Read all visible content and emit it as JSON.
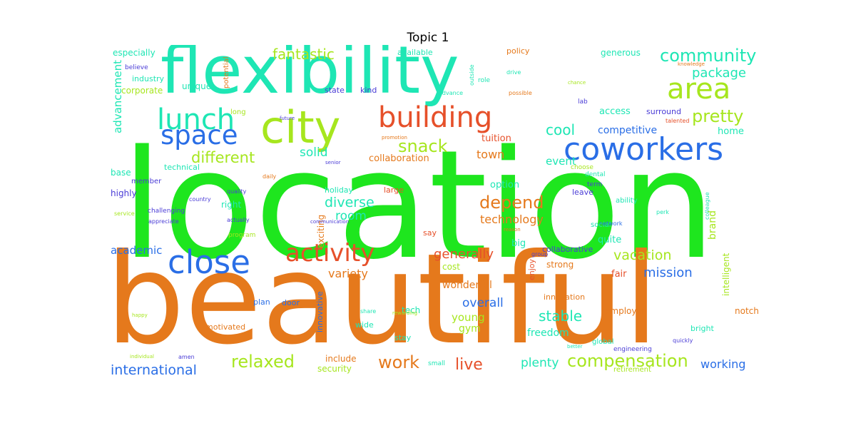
{
  "title": "Topic 1",
  "colors": {
    "green": "#1ee61e",
    "orange": "#e5791c",
    "teal": "#1ee6b4",
    "blue": "#2a6ee6",
    "lime": "#a6e61e",
    "red": "#e6502a",
    "purple": "#4a3cd6"
  },
  "words": [
    {
      "id": "location",
      "text": "location",
      "color": "green"
    },
    {
      "id": "beautiful",
      "text": "beautiful",
      "color": "orange"
    },
    {
      "id": "flexibility",
      "text": "flexibility",
      "color": "teal"
    },
    {
      "id": "city",
      "text": "city",
      "color": "lime"
    },
    {
      "id": "coworkers",
      "text": "coworkers",
      "color": "blue"
    },
    {
      "id": "building",
      "text": "building",
      "color": "red"
    },
    {
      "id": "area",
      "text": "area",
      "color": "lime"
    },
    {
      "id": "lunch",
      "text": "lunch",
      "color": "teal"
    },
    {
      "id": "space",
      "text": "space",
      "color": "blue"
    },
    {
      "id": "close",
      "text": "close",
      "color": "blue"
    },
    {
      "id": "activity",
      "text": "activity",
      "color": "red"
    },
    {
      "id": "community",
      "text": "community",
      "color": "teal"
    },
    {
      "id": "fantastic",
      "text": "fantastic",
      "color": "lime"
    },
    {
      "id": "pretty",
      "text": "pretty",
      "color": "lime"
    },
    {
      "id": "package",
      "text": "package",
      "color": "teal"
    },
    {
      "id": "different",
      "text": "different",
      "color": "lime"
    },
    {
      "id": "snack",
      "text": "snack",
      "color": "lime"
    },
    {
      "id": "cool",
      "text": "cool",
      "color": "teal"
    },
    {
      "id": "depend",
      "text": "depend",
      "color": "orange"
    },
    {
      "id": "diverse",
      "text": "diverse",
      "color": "teal"
    },
    {
      "id": "room",
      "text": "room",
      "color": "teal"
    },
    {
      "id": "technology",
      "text": "technology",
      "color": "orange"
    },
    {
      "id": "generally",
      "text": "generally",
      "color": "red"
    },
    {
      "id": "vacation",
      "text": "vacation",
      "color": "lime"
    },
    {
      "id": "mission",
      "text": "mission",
      "color": "blue"
    },
    {
      "id": "compensation",
      "text": "compensation",
      "color": "lime"
    },
    {
      "id": "relaxed",
      "text": "relaxed",
      "color": "lime"
    },
    {
      "id": "work",
      "text": "work",
      "color": "orange"
    },
    {
      "id": "live",
      "text": "live",
      "color": "red"
    },
    {
      "id": "international",
      "text": "international",
      "color": "blue"
    },
    {
      "id": "stable",
      "text": "stable",
      "color": "teal"
    },
    {
      "id": "solid",
      "text": "solid",
      "color": "teal"
    },
    {
      "id": "event",
      "text": "event",
      "color": "teal"
    },
    {
      "id": "town",
      "text": "town",
      "color": "orange"
    },
    {
      "id": "competitive",
      "text": "competitive",
      "color": "blue"
    },
    {
      "id": "advancement",
      "text": "advancement",
      "color": "teal"
    },
    {
      "id": "collaboration",
      "text": "collaboration",
      "color": "orange"
    },
    {
      "id": "tuition",
      "text": "tuition",
      "color": "red"
    },
    {
      "id": "variety",
      "text": "variety",
      "color": "orange"
    },
    {
      "id": "academic",
      "text": "academic",
      "color": "blue"
    },
    {
      "id": "wonderful",
      "text": "wonderful",
      "color": "orange"
    },
    {
      "id": "overall",
      "text": "overall",
      "color": "blue"
    },
    {
      "id": "young",
      "text": "young",
      "color": "lime"
    },
    {
      "id": "gym",
      "text": "gym",
      "color": "lime"
    },
    {
      "id": "plenty",
      "text": "plenty",
      "color": "teal"
    },
    {
      "id": "working",
      "text": "working",
      "color": "blue"
    },
    {
      "id": "freedom",
      "text": "freedom",
      "color": "teal"
    },
    {
      "id": "brand",
      "text": "brand",
      "color": "lime"
    },
    {
      "id": "option",
      "text": "option",
      "color": "teal"
    },
    {
      "id": "home",
      "text": "home",
      "color": "teal"
    },
    {
      "id": "generous",
      "text": "generous",
      "color": "teal"
    },
    {
      "id": "especially",
      "text": "especially",
      "color": "teal"
    },
    {
      "id": "available",
      "text": "available",
      "color": "teal"
    },
    {
      "id": "policy",
      "text": "policy",
      "color": "orange"
    },
    {
      "id": "unique",
      "text": "unique",
      "color": "teal"
    },
    {
      "id": "industry",
      "text": "industry",
      "color": "teal"
    },
    {
      "id": "corporate",
      "text": "corporate",
      "color": "lime"
    },
    {
      "id": "base",
      "text": "base",
      "color": "teal"
    },
    {
      "id": "highly",
      "text": "highly",
      "color": "purple"
    },
    {
      "id": "exciting",
      "text": "exciting",
      "color": "orange"
    },
    {
      "id": "include",
      "text": "include",
      "color": "orange"
    },
    {
      "id": "security",
      "text": "security",
      "color": "lime"
    },
    {
      "id": "enjoy",
      "text": "enjoy",
      "color": "red"
    },
    {
      "id": "intelligent",
      "text": "intelligent",
      "color": "lime"
    },
    {
      "id": "innovation",
      "text": "innovation",
      "color": "orange"
    },
    {
      "id": "collaborative",
      "text": "collaborative",
      "color": "purple"
    },
    {
      "id": "access",
      "text": "access",
      "color": "teal"
    },
    {
      "id": "surround",
      "text": "surround",
      "color": "purple"
    },
    {
      "id": "employer",
      "text": "employer",
      "color": "orange"
    },
    {
      "id": "fair",
      "text": "fair",
      "color": "red"
    },
    {
      "id": "strong",
      "text": "strong",
      "color": "orange"
    },
    {
      "id": "notch",
      "text": "notch",
      "color": "orange"
    },
    {
      "id": "bright",
      "text": "bright",
      "color": "teal"
    },
    {
      "id": "motivated",
      "text": "motivated",
      "color": "orange"
    },
    {
      "id": "innovative",
      "text": "innovative",
      "color": "blue"
    },
    {
      "id": "tech",
      "text": "tech",
      "color": "teal"
    },
    {
      "id": "quite",
      "text": "quite",
      "color": "teal"
    },
    {
      "id": "leave",
      "text": "leave",
      "color": "purple"
    },
    {
      "id": "large",
      "text": "large",
      "color": "red"
    },
    {
      "id": "holiday",
      "text": "holiday",
      "color": "teal"
    },
    {
      "id": "right",
      "text": "right",
      "color": "teal"
    },
    {
      "id": "member",
      "text": "member",
      "color": "purple"
    },
    {
      "id": "technical",
      "text": "technical",
      "color": "teal"
    },
    {
      "id": "potential",
      "text": "potential",
      "color": "orange"
    },
    {
      "id": "state",
      "text": "state",
      "color": "purple"
    },
    {
      "id": "kind",
      "text": "kind",
      "color": "purple"
    },
    {
      "id": "long",
      "text": "long",
      "color": "lime"
    },
    {
      "id": "believe",
      "text": "believe",
      "color": "purple"
    },
    {
      "id": "door",
      "text": "door",
      "color": "blue"
    },
    {
      "id": "plan",
      "text": "plan",
      "color": "blue"
    },
    {
      "id": "wide",
      "text": "wide",
      "color": "teal"
    },
    {
      "id": "stay",
      "text": "stay",
      "color": "teal"
    },
    {
      "id": "cost",
      "text": "cost",
      "color": "lime"
    },
    {
      "id": "big",
      "text": "big",
      "color": "teal"
    },
    {
      "id": "social",
      "text": "social",
      "color": "teal"
    },
    {
      "id": "choose",
      "text": "choose",
      "color": "lime"
    },
    {
      "id": "dental",
      "text": "dental",
      "color": "teal"
    },
    {
      "id": "ability",
      "text": "ability",
      "color": "teal"
    },
    {
      "id": "global",
      "text": "global",
      "color": "teal"
    },
    {
      "id": "retirement",
      "text": "retirement",
      "color": "lime"
    },
    {
      "id": "engineering",
      "text": "engineering",
      "color": "purple"
    },
    {
      "id": "quickly",
      "text": "quickly",
      "color": "purple"
    },
    {
      "id": "say",
      "text": "say",
      "color": "red"
    },
    {
      "id": "small",
      "text": "small",
      "color": "teal"
    },
    {
      "id": "drive",
      "text": "drive",
      "color": "teal"
    },
    {
      "id": "role",
      "text": "role",
      "color": "teal"
    },
    {
      "id": "advance",
      "text": "advance",
      "color": "teal"
    },
    {
      "id": "possible",
      "text": "possible",
      "color": "orange"
    },
    {
      "id": "outside",
      "text": "outside",
      "color": "teal"
    },
    {
      "id": "challenging",
      "text": "challenging",
      "color": "purple"
    },
    {
      "id": "appreciate",
      "text": "appreciate",
      "color": "purple"
    },
    {
      "id": "program",
      "text": "program",
      "color": "lime"
    },
    {
      "id": "share",
      "text": "share",
      "color": "teal"
    },
    {
      "id": "rewarding",
      "text": "rewarding",
      "color": "lime"
    },
    {
      "id": "talented",
      "text": "talented",
      "color": "red"
    },
    {
      "id": "colleague",
      "text": "colleague",
      "color": "teal"
    },
    {
      "id": "individual",
      "text": "individual",
      "color": "lime"
    },
    {
      "id": "amen",
      "text": "amen",
      "color": "purple"
    },
    {
      "id": "better",
      "text": "better",
      "color": "teal"
    },
    {
      "id": "group",
      "text": "group",
      "color": "purple"
    },
    {
      "id": "quality",
      "text": "quality",
      "color": "purple"
    },
    {
      "id": "country",
      "text": "country",
      "color": "purple"
    },
    {
      "id": "service",
      "text": "service",
      "color": "lime"
    },
    {
      "id": "actually",
      "text": "actually",
      "color": "purple"
    },
    {
      "id": "network",
      "text": "network",
      "color": "blue"
    },
    {
      "id": "communication",
      "text": "communication",
      "color": "purple"
    },
    {
      "id": "future",
      "text": "future",
      "color": "purple"
    },
    {
      "id": "promotion",
      "text": "promotion",
      "color": "orange"
    },
    {
      "id": "chance",
      "text": "chance",
      "color": "lime"
    },
    {
      "id": "senior",
      "text": "senior",
      "color": "purple"
    },
    {
      "id": "term",
      "text": "term",
      "color": "purple"
    },
    {
      "id": "perk",
      "text": "perk",
      "color": "teal"
    },
    {
      "id": "reason",
      "text": "reason",
      "color": "orange"
    },
    {
      "id": "daily",
      "text": "daily",
      "color": "orange"
    },
    {
      "id": "lab",
      "text": "lab",
      "color": "purple"
    },
    {
      "id": "happy",
      "text": "happy",
      "color": "lime"
    },
    {
      "id": "knowledge",
      "text": "knowledge",
      "color": "orange"
    }
  ]
}
